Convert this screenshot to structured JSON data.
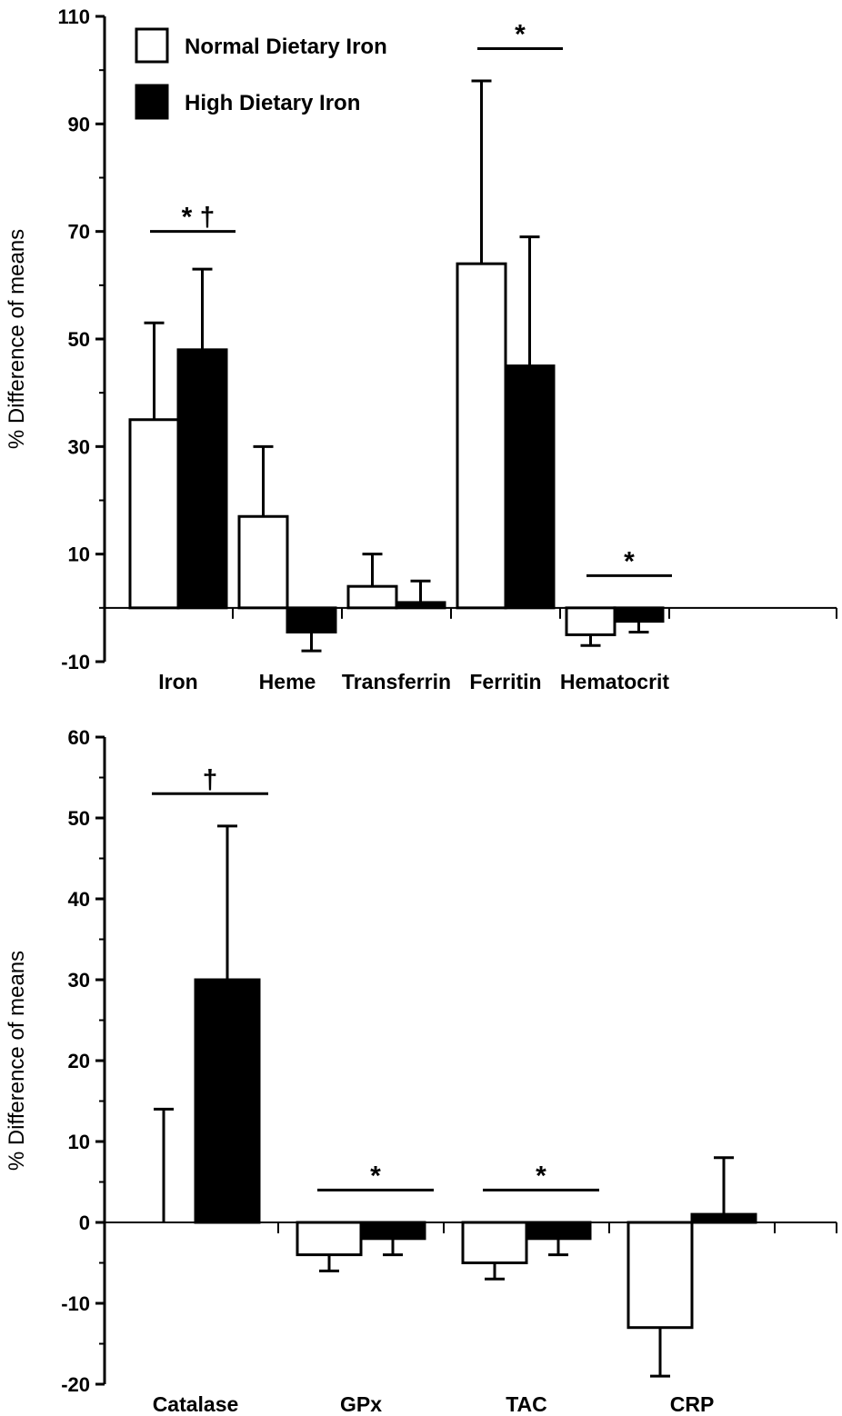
{
  "chart_data": [
    {
      "type": "bar",
      "ylabel": "% Difference of means",
      "ylim": [
        -10,
        110
      ],
      "yticks": [
        -10,
        10,
        30,
        50,
        70,
        90,
        110
      ],
      "categories": [
        "Iron",
        "Heme",
        "Transferrin",
        "Ferritin",
        "Hematocrit"
      ],
      "series": [
        {
          "name": "Normal Dietary Iron",
          "fill": "#ffffff",
          "values": [
            35,
            17,
            4,
            64,
            -5
          ],
          "errors": [
            18,
            13,
            6,
            34,
            2
          ]
        },
        {
          "name": "High Dietary Iron",
          "fill": "#000000",
          "values": [
            48,
            -4.5,
            1,
            45,
            -2.5
          ],
          "errors": [
            15,
            3.5,
            4,
            24,
            2
          ]
        }
      ],
      "legend": {
        "position": "top-left"
      },
      "annotations": [
        {
          "category": "Iron",
          "marks": [
            "*",
            "†"
          ],
          "y": 70
        },
        {
          "category": "Ferritin",
          "marks": [
            "*"
          ],
          "y": 104
        },
        {
          "category": "Hematocrit",
          "marks": [
            "*"
          ],
          "y": 6
        }
      ]
    },
    {
      "type": "bar",
      "ylabel": "% Difference of means",
      "ylim": [
        -20,
        60
      ],
      "yticks": [
        -20,
        -10,
        0,
        10,
        20,
        30,
        40,
        50,
        60
      ],
      "categories": [
        "Catalase",
        "GPx",
        "TAC",
        "CRP"
      ],
      "series": [
        {
          "name": "Normal Dietary Iron",
          "fill": "#ffffff",
          "values": [
            0,
            -4,
            -5,
            -13
          ],
          "errors": [
            14,
            2,
            2,
            6
          ]
        },
        {
          "name": "High Dietary Iron",
          "fill": "#000000",
          "values": [
            30,
            -2,
            -2,
            1
          ],
          "errors": [
            19,
            2,
            2,
            7
          ]
        }
      ],
      "annotations": [
        {
          "category": "Catalase",
          "marks": [
            "†"
          ],
          "y": 53
        },
        {
          "category": "GPx",
          "marks": [
            "*"
          ],
          "y": 4
        },
        {
          "category": "TAC",
          "marks": [
            "*"
          ],
          "y": 4
        }
      ]
    }
  ]
}
